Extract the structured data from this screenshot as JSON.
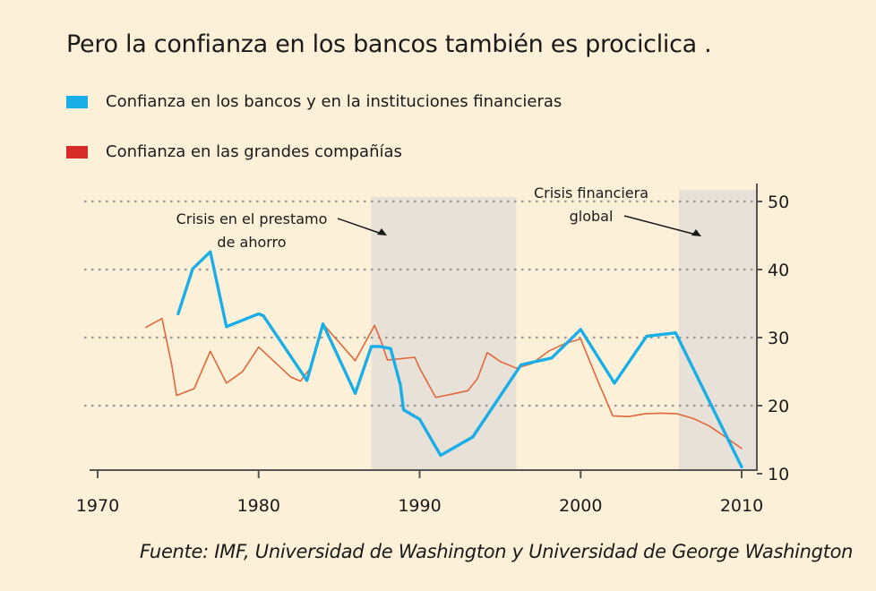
{
  "chart_data": {
    "type": "line",
    "title": "Pero la confianza en los bancos también es prociclica .",
    "source": "Fuente: IMF, Universidad de Washington y Universidad de George Washington",
    "xlim": [
      1970,
      2010
    ],
    "ylim": [
      10,
      50
    ],
    "x_ticks": [
      1970,
      1980,
      1990,
      2000,
      2010
    ],
    "y_ticks": [
      10,
      20,
      30,
      40,
      50
    ],
    "y_grid_lines": [
      20,
      30,
      40,
      50
    ],
    "colors": {
      "background": "#fdf0d8",
      "banks": "#19aee8",
      "companies": "#e0683c",
      "legend_companies": "#d62b27",
      "shade": "#e8e1d8",
      "grid": "#999999"
    },
    "legend": [
      {
        "label": "Confianza en los bancos y en la instituciones financieras",
        "series": "banks"
      },
      {
        "label": "Confianza en las grandes compañías",
        "series": "companies"
      }
    ],
    "shaded_periods": [
      {
        "start": 1987,
        "end": 1996,
        "label_lines": [
          "Crisis en el prestamo",
          "de ahorro"
        ]
      },
      {
        "start": 2006.1,
        "end": 2011,
        "label_lines": [
          "Crisis financiera",
          "global"
        ]
      }
    ],
    "series": [
      {
        "name": "banks",
        "x": [
          1975,
          1975.9,
          1977,
          1978,
          1980,
          1980.3,
          1983,
          1984,
          1986,
          1987,
          1987.5,
          1988.2,
          1988.8,
          1989,
          1990,
          1991.3,
          1993.3,
          1996.3,
          1998.2,
          2000,
          2002.1,
          2004.1,
          2005.9,
          2010
        ],
        "values": [
          33.5,
          40.1,
          42.6,
          31.6,
          33.5,
          33.2,
          23.7,
          32.0,
          21.8,
          28.7,
          28.7,
          28.4,
          23.1,
          19.4,
          18.0,
          12.7,
          15.4,
          26.0,
          27.0,
          31.2,
          23.3,
          30.2,
          30.7,
          11.0
        ]
      },
      {
        "name": "companies",
        "x": [
          1973,
          1974,
          1974.6,
          1974.9,
          1976,
          1977,
          1978,
          1979,
          1980,
          1982,
          1982.6,
          1983.2,
          1984,
          1986,
          1987.2,
          1987.6,
          1988,
          1989.7,
          1990,
          1991,
          1993,
          1993.6,
          1994.2,
          1995,
          1996,
          1997,
          1998,
          1999,
          2000,
          2001,
          2002,
          2003,
          2004,
          2005,
          2006,
          2007,
          2008,
          2009,
          2010
        ],
        "values": [
          31.5,
          32.8,
          26.0,
          21.5,
          22.5,
          28.0,
          23.3,
          25.0,
          28.6,
          24.2,
          23.6,
          25.5,
          32.0,
          26.6,
          31.8,
          29.5,
          26.7,
          27.1,
          25.5,
          21.2,
          22.2,
          24.0,
          27.8,
          26.5,
          25.5,
          26.2,
          28.0,
          29.1,
          29.8,
          24.0,
          18.5,
          18.4,
          18.8,
          18.9,
          18.8,
          18.1,
          17.0,
          15.4,
          13.7
        ]
      }
    ]
  }
}
